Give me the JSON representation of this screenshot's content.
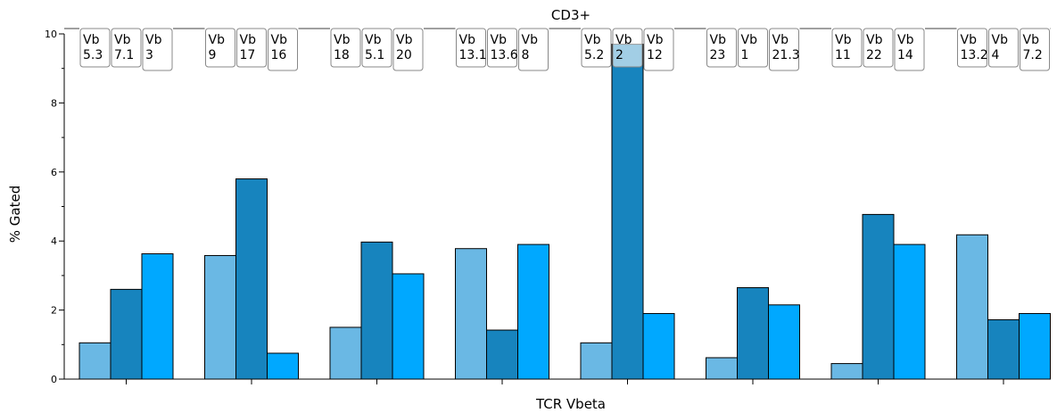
{
  "chart_data": {
    "type": "bar",
    "title": "CD3+",
    "xlabel": "TCR Vbeta",
    "ylabel": "% Gated",
    "ylim": [
      0,
      10
    ],
    "yticks": [
      "0",
      "2",
      "4",
      "6",
      "8",
      "10"
    ],
    "grid": false,
    "series_colors": [
      "#6ab8e4",
      "#1784be",
      "#00a8ff"
    ],
    "groups": [
      {
        "bars": [
          {
            "line1": "Vb",
            "line2": "5.3",
            "value": 1.05
          },
          {
            "line1": "Vb",
            "line2": "7.1",
            "value": 2.6
          },
          {
            "line1": "Vb",
            "line2": "3",
            "value": 3.63
          }
        ]
      },
      {
        "bars": [
          {
            "line1": "Vb",
            "line2": "9",
            "value": 3.58
          },
          {
            "line1": "Vb",
            "line2": "17",
            "value": 5.8
          },
          {
            "line1": "Vb",
            "line2": "16",
            "value": 0.75
          }
        ]
      },
      {
        "bars": [
          {
            "line1": "Vb",
            "line2": "18",
            "value": 1.5
          },
          {
            "line1": "Vb",
            "line2": "5.1",
            "value": 3.97
          },
          {
            "line1": "Vb",
            "line2": "20",
            "value": 3.05
          }
        ]
      },
      {
        "bars": [
          {
            "line1": "Vb",
            "line2": "13.1",
            "value": 3.78
          },
          {
            "line1": "Vb",
            "line2": "13.6",
            "value": 1.42
          },
          {
            "line1": "Vb",
            "line2": "8",
            "value": 3.9
          }
        ]
      },
      {
        "bars": [
          {
            "line1": "Vb",
            "line2": "5.2",
            "value": 1.05
          },
          {
            "line1": "Vb",
            "line2": "2",
            "value": 9.7
          },
          {
            "line1": "Vb",
            "line2": "12",
            "value": 1.9
          }
        ]
      },
      {
        "bars": [
          {
            "line1": "Vb",
            "line2": "23",
            "value": 0.62
          },
          {
            "line1": "Vb",
            "line2": "1",
            "value": 2.65
          },
          {
            "line1": "Vb",
            "line2": "21.3",
            "value": 2.15
          }
        ]
      },
      {
        "bars": [
          {
            "line1": "Vb",
            "line2": "11",
            "value": 0.45
          },
          {
            "line1": "Vb",
            "line2": "22",
            "value": 4.77
          },
          {
            "line1": "Vb",
            "line2": "14",
            "value": 3.9
          }
        ]
      },
      {
        "bars": [
          {
            "line1": "Vb",
            "line2": "13.2",
            "value": 4.18
          },
          {
            "line1": "Vb",
            "line2": "4",
            "value": 1.72
          },
          {
            "line1": "Vb",
            "line2": "7.2",
            "value": 1.9
          }
        ]
      }
    ]
  }
}
